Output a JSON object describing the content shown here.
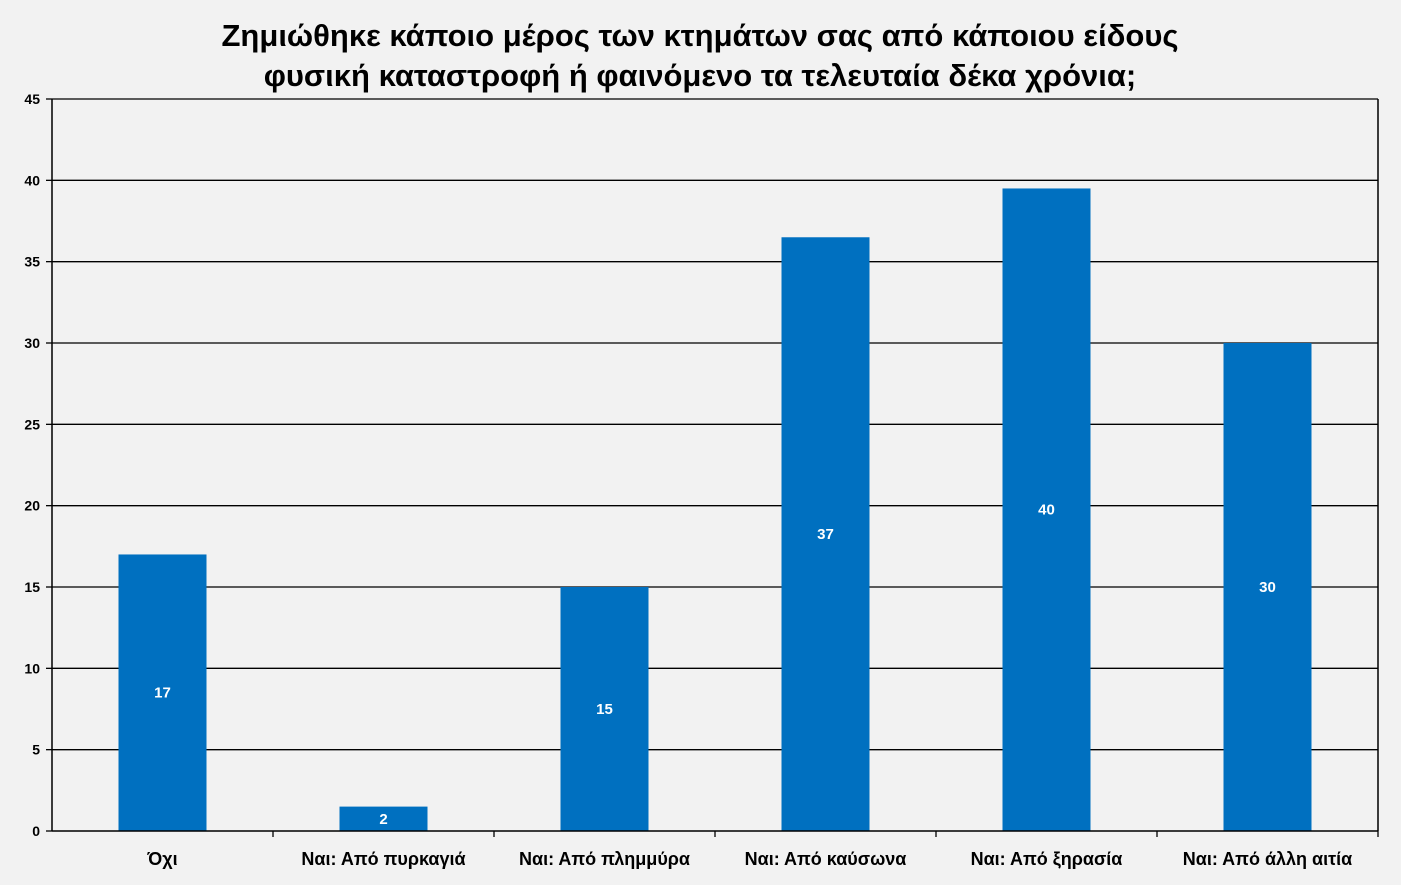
{
  "chart_data": {
    "type": "bar",
    "title_lines": [
      "Ζημιώθηκε κάποιο μέρος των κτημάτων σας από κάποιου είδους",
      "φυσική καταστροφή ή φαινόμενο τα τελευταία δέκα χρόνια;"
    ],
    "categories": [
      "Όχι",
      "Ναι: Από πυρκαγιά",
      "Ναι: Από πλημμύρα",
      "Ναι: Από καύσωνα",
      "Ναι: Από ξηρασία",
      "Ναι: Από άλλη αιτία"
    ],
    "values": [
      17,
      1.5,
      15,
      36.5,
      39.5,
      30
    ],
    "data_labels": [
      "17",
      "2",
      "15",
      "37",
      "40",
      "30"
    ],
    "ylim": [
      0,
      45
    ],
    "yticks": [
      0,
      5,
      10,
      15,
      20,
      25,
      30,
      35,
      40,
      45
    ],
    "grid": true,
    "legend": "none",
    "bar_color": "#0070c0",
    "background": "#f2f2f2"
  }
}
